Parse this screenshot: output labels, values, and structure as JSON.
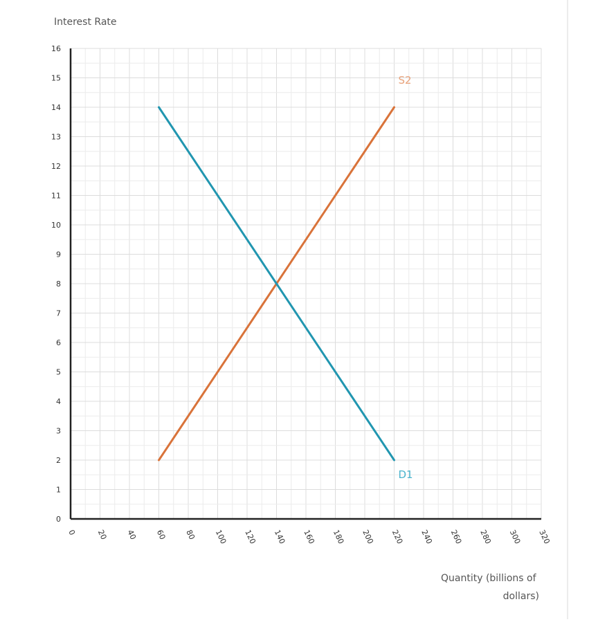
{
  "chart_data": {
    "type": "line",
    "title": "",
    "xlabel_lines": [
      "Quantity (billions of",
      "dollars)"
    ],
    "ylabel": "Interest Rate",
    "xlim": [
      0,
      320
    ],
    "ylim": [
      0,
      16
    ],
    "xticks": [
      "0",
      "20",
      "40",
      "60",
      "80",
      "100",
      "120",
      "140",
      "160",
      "180",
      "200",
      "220",
      "240",
      "260",
      "280",
      "300",
      "320"
    ],
    "yticks": [
      "0",
      "1",
      "2",
      "3",
      "4",
      "5",
      "6",
      "7",
      "8",
      "9",
      "10",
      "11",
      "12",
      "13",
      "14",
      "15",
      "16"
    ],
    "grid": true,
    "series": [
      {
        "name": "S2",
        "color": "#d9733a",
        "label_color": "#e8a27a",
        "points": [
          [
            60,
            2
          ],
          [
            220,
            14
          ]
        ]
      },
      {
        "name": "D1",
        "color": "#2196b0",
        "label_color": "#4ab3cc",
        "points": [
          [
            60,
            14
          ],
          [
            220,
            2
          ]
        ]
      }
    ]
  }
}
